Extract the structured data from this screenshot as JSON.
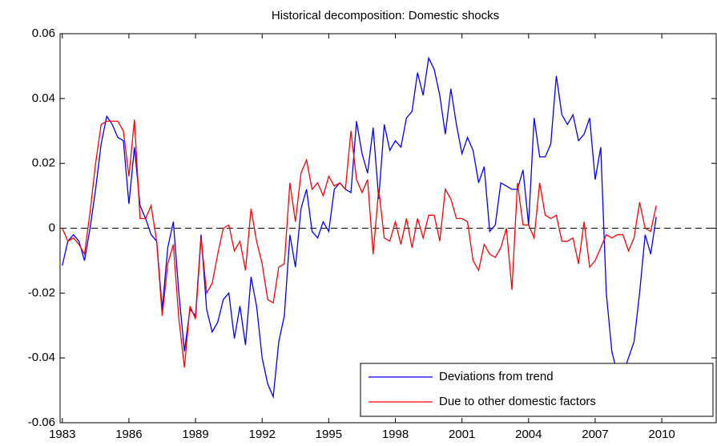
{
  "chart_data": {
    "type": "line",
    "title": "Historical decomposition: Domestic shocks",
    "x": [
      1983,
      1983.25,
      1983.5,
      1983.75,
      1984,
      1984.25,
      1984.5,
      1984.75,
      1985,
      1985.25,
      1985.5,
      1985.75,
      1986,
      1986.25,
      1986.5,
      1986.75,
      1987,
      1987.25,
      1987.5,
      1987.75,
      1988,
      1988.25,
      1988.5,
      1988.75,
      1989,
      1989.25,
      1989.5,
      1989.75,
      1990,
      1990.25,
      1990.5,
      1990.75,
      1991,
      1991.25,
      1991.5,
      1991.75,
      1992,
      1992.25,
      1992.5,
      1992.75,
      1993,
      1993.25,
      1993.5,
      1993.75,
      1994,
      1994.25,
      1994.5,
      1994.75,
      1995,
      1995.25,
      1995.5,
      1995.75,
      1996,
      1996.25,
      1996.5,
      1996.75,
      1997,
      1997.25,
      1997.5,
      1997.75,
      1998,
      1998.25,
      1998.5,
      1998.75,
      1999,
      1999.25,
      1999.5,
      1999.75,
      2000,
      2000.25,
      2000.5,
      2000.75,
      2001,
      2001.25,
      2001.5,
      2001.75,
      2002,
      2002.25,
      2002.5,
      2002.75,
      2003,
      2003.25,
      2003.5,
      2003.75,
      2004,
      2004.25,
      2004.5,
      2004.75,
      2005,
      2005.25,
      2005.5,
      2005.75,
      2006,
      2006.25,
      2006.5,
      2006.75,
      2007,
      2007.25,
      2007.5,
      2007.75,
      2008,
      2008.25,
      2008.5,
      2008.75,
      2009,
      2009.25,
      2009.5,
      2009.75
    ],
    "series": [
      {
        "name": "Deviations from trend",
        "color": "#0000ff",
        "values": [
          -0.0115,
          -0.004,
          -0.002,
          -0.004,
          -0.01,
          0,
          0.012,
          0.026,
          0.0345,
          0.032,
          0.028,
          0.027,
          0.0075,
          0.025,
          0.007,
          0.003,
          -0.002,
          -0.004,
          -0.025,
          -0.006,
          0.002,
          -0.02,
          -0.038,
          -0.025,
          -0.027,
          -0.002,
          -0.025,
          -0.032,
          -0.029,
          -0.022,
          -0.02,
          -0.034,
          -0.024,
          -0.036,
          -0.015,
          -0.024,
          -0.04,
          -0.048,
          -0.052,
          -0.035,
          -0.027,
          -0.002,
          -0.012,
          0.006,
          0.012,
          -0.001,
          -0.003,
          0.002,
          -0.001,
          0.012,
          0.014,
          0.012,
          0.011,
          0.033,
          0.023,
          0.017,
          0.031,
          0.009,
          0.032,
          0.024,
          0.027,
          0.025,
          0.034,
          0.036,
          0.048,
          0.041,
          0.0525,
          0.049,
          0.041,
          0.029,
          0.043,
          0.032,
          0.023,
          0.028,
          0.024,
          0.014,
          0.019,
          -0.001,
          0.001,
          0.014,
          0.013,
          0.012,
          0.012,
          0.018,
          0.001,
          0.034,
          0.022,
          0.022,
          0.026,
          0.047,
          0.035,
          0.032,
          0.035,
          0.027,
          0.029,
          0.034,
          0.015,
          0.025,
          -0.02,
          -0.038,
          -0.045,
          -0.045,
          -0.04,
          -0.035,
          -0.02,
          -0.002,
          -0.008,
          0.0035
        ]
      },
      {
        "name": "Due to other domestic factors",
        "color": "#ff0000",
        "values": [
          0,
          -0.004,
          -0.003,
          -0.005,
          -0.008,
          0.005,
          0.02,
          0.032,
          0.033,
          0.033,
          0.033,
          0.03,
          0.016,
          0.0335,
          0.003,
          0.003,
          0.007,
          -0.004,
          -0.027,
          -0.011,
          -0.005,
          -0.028,
          -0.043,
          -0.024,
          -0.028,
          -0.003,
          -0.02,
          -0.017,
          -0.008,
          0,
          0.001,
          -0.007,
          -0.004,
          -0.013,
          0.006,
          -0.004,
          -0.011,
          -0.022,
          -0.023,
          -0.012,
          -0.011,
          0.014,
          0.002,
          0.017,
          0.021,
          0.012,
          0.014,
          0.01,
          0.016,
          0.013,
          0.014,
          0.012,
          0.03,
          0.015,
          0.011,
          0.015,
          -0.008,
          0.012,
          -0.003,
          -0.004,
          0.002,
          -0.005,
          0.003,
          -0.006,
          0.003,
          -0.003,
          0.004,
          0.004,
          -0.004,
          0.012,
          0.009,
          0.003,
          0.003,
          0.002,
          -0.01,
          -0.013,
          -0.005,
          -0.008,
          -0.009,
          -0.006,
          0,
          -0.019,
          0.014,
          0.001,
          0.001,
          -0.003,
          0.014,
          0.004,
          0.003,
          0.004,
          -0.004,
          -0.004,
          -0.003,
          -0.011,
          0.002,
          -0.012,
          -0.01,
          -0.006,
          -0.002,
          -0.003,
          -0.002,
          -0.002,
          -0.007,
          -0.003,
          0.008,
          0,
          -0.001,
          0.007
        ]
      }
    ],
    "xlim": [
      1982.9,
      2012.45
    ],
    "xticks": [
      1983,
      1986,
      1989,
      1992,
      1995,
      1998,
      2001,
      2004,
      2007,
      2010
    ],
    "ylim": [
      -0.06,
      0.06
    ],
    "yticks": [
      -0.06,
      -0.04,
      -0.02,
      0,
      0.02,
      0.04,
      0.06
    ],
    "hline": 0,
    "legend": "lower right"
  }
}
